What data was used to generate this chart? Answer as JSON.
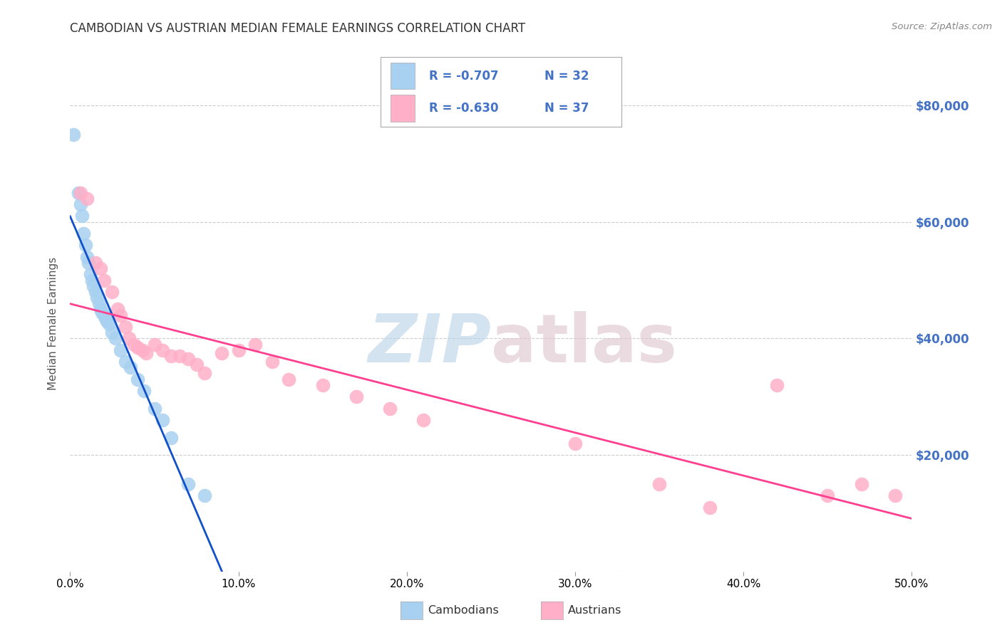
{
  "title": "CAMBODIAN VS AUSTRIAN MEDIAN FEMALE EARNINGS CORRELATION CHART",
  "source": "Source: ZipAtlas.com",
  "ylabel": "Median Female Earnings",
  "xmin": 0.0,
  "xmax": 0.5,
  "ymin": 0,
  "ymax": 85000,
  "legend_r1": "R = -0.707",
  "legend_n1": "N = 32",
  "legend_r2": "R = -0.630",
  "legend_n2": "N = 37",
  "cambodian_color": "#A8D0F0",
  "austrian_color": "#FFB0C8",
  "cambodian_line_color": "#1050C8",
  "austrian_line_color": "#FF4090",
  "watermark_zip_color": "#BDD4E8",
  "watermark_atlas_color": "#E0C8D0",
  "background_color": "#FFFFFF",
  "grid_color": "#CCCCCC",
  "right_yaxis_color": "#4472C4",
  "legend_r_color": "#4472C4",
  "legend_n_color": "#4472C4",
  "title_color": "#333333",
  "source_color": "#888888",
  "cambodian_x": [
    0.002,
    0.005,
    0.006,
    0.007,
    0.008,
    0.009,
    0.01,
    0.011,
    0.012,
    0.013,
    0.014,
    0.015,
    0.016,
    0.017,
    0.018,
    0.019,
    0.02,
    0.021,
    0.022,
    0.023,
    0.025,
    0.027,
    0.03,
    0.033,
    0.036,
    0.04,
    0.044,
    0.05,
    0.055,
    0.06,
    0.07,
    0.08
  ],
  "cambodian_y": [
    75000,
    65000,
    63000,
    61000,
    58000,
    56000,
    54000,
    53000,
    51000,
    50000,
    49000,
    48000,
    47000,
    46000,
    45000,
    44500,
    44000,
    43500,
    43000,
    42500,
    41000,
    40000,
    38000,
    36000,
    35000,
    33000,
    31000,
    28000,
    26000,
    23000,
    15000,
    13000
  ],
  "austrian_x": [
    0.006,
    0.01,
    0.015,
    0.018,
    0.02,
    0.025,
    0.028,
    0.03,
    0.033,
    0.035,
    0.038,
    0.04,
    0.043,
    0.045,
    0.05,
    0.055,
    0.06,
    0.065,
    0.07,
    0.075,
    0.08,
    0.09,
    0.1,
    0.11,
    0.12,
    0.13,
    0.15,
    0.17,
    0.19,
    0.21,
    0.3,
    0.35,
    0.38,
    0.42,
    0.45,
    0.47,
    0.49
  ],
  "austrian_y": [
    65000,
    64000,
    53000,
    52000,
    50000,
    48000,
    45000,
    44000,
    42000,
    40000,
    39000,
    38500,
    38000,
    37500,
    39000,
    38000,
    37000,
    37000,
    36500,
    35500,
    34000,
    37500,
    38000,
    39000,
    36000,
    33000,
    32000,
    30000,
    28000,
    26000,
    22000,
    15000,
    11000,
    32000,
    13000,
    15000,
    13000
  ],
  "xticks": [
    0.0,
    0.1,
    0.2,
    0.3,
    0.4,
    0.5
  ],
  "yticks": [
    0,
    20000,
    40000,
    60000,
    80000
  ]
}
